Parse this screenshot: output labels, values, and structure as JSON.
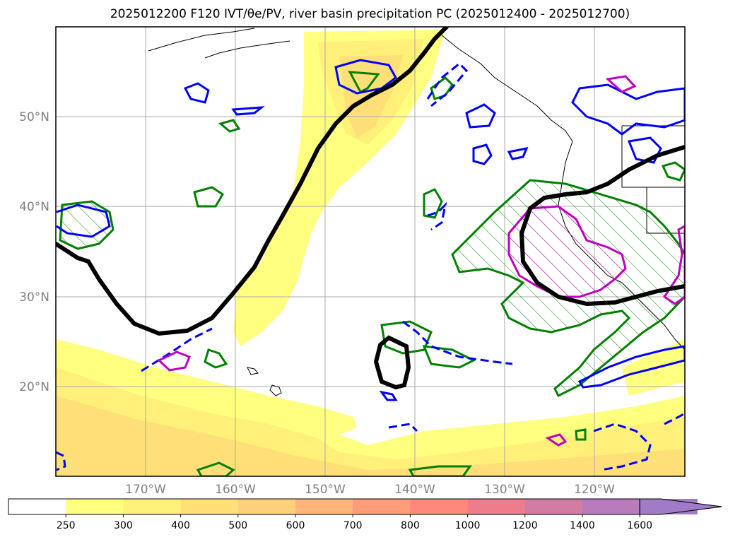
{
  "title": "2025012200 F120 IVT/θe/PV, river basin precipitation PC (2025012400 - 2025012700)",
  "map": {
    "lat_labels": [
      "50°N",
      "40°N",
      "30°N",
      "20°N"
    ],
    "lon_labels": [
      "170°W",
      "160°W",
      "150°W",
      "140°W",
      "130°W",
      "120°W"
    ],
    "lat_range": [
      10,
      60
    ],
    "lon_range": [
      -180,
      -110
    ],
    "grid": true
  },
  "colorbar": {
    "ticks": [
      "250",
      "300",
      "400",
      "500",
      "600",
      "700",
      "800",
      "1000",
      "1200",
      "1400",
      "1600"
    ],
    "colors": [
      "#ffffff",
      "#ffff80",
      "#fff07a",
      "#ffe078",
      "#ffd07a",
      "#ffb47a",
      "#ff9c7a",
      "#ff887c",
      "#ee7c8c",
      "#d27ca4",
      "#b87cbc",
      "#a07cc8"
    ],
    "extend": "max"
  },
  "contour_colors": {
    "ivt_fill": "#ffee88",
    "theta_e": "#000000",
    "pv_positive": "#0000ff",
    "precip_pc": "#008000",
    "pv_magenta": "#c000c0"
  }
}
